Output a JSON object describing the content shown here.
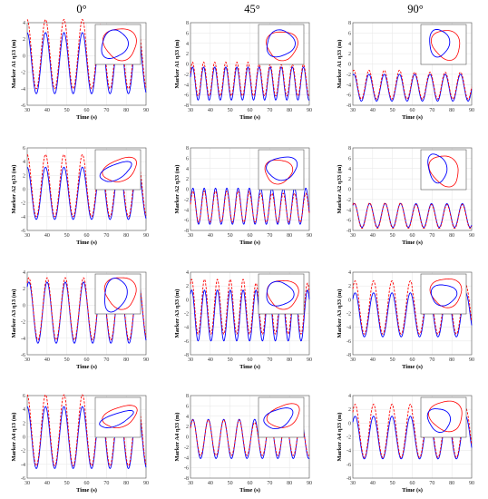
{
  "columns": [
    "0°",
    "45°",
    "90°"
  ],
  "chart_data": [
    {
      "type": "line",
      "row": 1,
      "col": 1,
      "ylabel": "Marker A1 η13 (m)",
      "xlabel": "Time (s)",
      "xlim": [
        30,
        90
      ],
      "ylim": [
        -6,
        4
      ],
      "yticks": [
        -6,
        -4,
        -2,
        0,
        2,
        4
      ],
      "xticks": [
        30,
        40,
        50,
        60,
        70,
        80,
        90
      ],
      "grid": true,
      "period": 9.3,
      "phase": 1.6,
      "series": [
        {
          "color": "#0000ff",
          "style": "solid",
          "max": 2.8,
          "min": -4.6
        },
        {
          "color": "#ff0000",
          "style": "dashed",
          "max": 3.8,
          "min": -4.0
        }
      ],
      "inset": {
        "blue": {
          "cx": 0.42,
          "cy": 0.5,
          "rx": 0.28,
          "ry": 0.36,
          "rot": 20
        },
        "red": {
          "cx": 0.55,
          "cy": 0.48,
          "rx": 0.36,
          "ry": 0.4,
          "rot": -15
        }
      }
    },
    {
      "type": "line",
      "row": 1,
      "col": 2,
      "ylabel": "Marker A1 η33 (m)",
      "xlabel": "Time (s)",
      "xlim": [
        30,
        90
      ],
      "ylim": [
        -8,
        8
      ],
      "yticks": [
        -8,
        -6,
        -4,
        -2,
        0,
        2,
        4,
        6,
        8
      ],
      "xticks": [
        30,
        40,
        50,
        60,
        70,
        80,
        90
      ],
      "grid": true,
      "period": 5.6,
      "phase": 0.4,
      "series": [
        {
          "color": "#0000ff",
          "style": "solid",
          "max": -0.6,
          "min": -7.0
        },
        {
          "color": "#ff0000",
          "style": "dashed",
          "max": -0.1,
          "min": -6.2
        }
      ],
      "inset": {
        "blue": {
          "cx": 0.48,
          "cy": 0.48,
          "rx": 0.3,
          "ry": 0.34,
          "rot": 25
        },
        "red": {
          "cx": 0.52,
          "cy": 0.52,
          "rx": 0.34,
          "ry": 0.36,
          "rot": -10
        }
      }
    },
    {
      "type": "line",
      "row": 1,
      "col": 3,
      "ylabel": "Marker A1 η33 (m)",
      "xlabel": "Time (s)",
      "xlim": [
        30,
        90
      ],
      "ylim": [
        -8,
        8
      ],
      "yticks": [
        -8,
        -6,
        -4,
        -2,
        0,
        2,
        4,
        6,
        8
      ],
      "xticks": [
        30,
        40,
        50,
        60,
        70,
        80,
        90
      ],
      "grid": true,
      "period": 7.7,
      "phase": 1.2,
      "series": [
        {
          "color": "#0000ff",
          "style": "solid",
          "max": -2.0,
          "min": -7.2
        },
        {
          "color": "#ff0000",
          "style": "dashed",
          "max": -1.6,
          "min": -6.8
        }
      ],
      "inset": {
        "blue": {
          "cx": 0.4,
          "cy": 0.46,
          "rx": 0.22,
          "ry": 0.34,
          "rot": 0
        },
        "red": {
          "cx": 0.56,
          "cy": 0.5,
          "rx": 0.3,
          "ry": 0.38,
          "rot": -20
        }
      }
    },
    {
      "type": "line",
      "row": 2,
      "col": 1,
      "ylabel": "Marker A2 η13 (m)",
      "xlabel": "Time (s)",
      "xlim": [
        30,
        90
      ],
      "ylim": [
        -6,
        6
      ],
      "yticks": [
        -6,
        -4,
        -2,
        0,
        2,
        4,
        6
      ],
      "xticks": [
        30,
        40,
        50,
        60,
        70,
        80,
        90
      ],
      "grid": true,
      "period": 9.3,
      "phase": 1.6,
      "series": [
        {
          "color": "#0000ff",
          "style": "solid",
          "max": 3.2,
          "min": -4.4
        },
        {
          "color": "#ff0000",
          "style": "dashed",
          "max": 4.4,
          "min": -4.0
        }
      ],
      "inset": {
        "blue": {
          "cx": 0.45,
          "cy": 0.55,
          "rx": 0.38,
          "ry": 0.18,
          "rot": -30
        },
        "red": {
          "cx": 0.55,
          "cy": 0.5,
          "rx": 0.4,
          "ry": 0.26,
          "rot": -30
        }
      }
    },
    {
      "type": "line",
      "row": 2,
      "col": 2,
      "ylabel": "Marker A2 η33 (m)",
      "xlabel": "Time (s)",
      "xlim": [
        30,
        90
      ],
      "ylim": [
        -8,
        8
      ],
      "yticks": [
        -8,
        -6,
        -4,
        -2,
        0,
        2,
        4,
        6,
        8
      ],
      "xticks": [
        30,
        40,
        50,
        60,
        70,
        80,
        90
      ],
      "grid": true,
      "period": 5.7,
      "phase": 0.2,
      "series": [
        {
          "color": "#0000ff",
          "style": "solid",
          "max": 0.2,
          "min": -6.8
        },
        {
          "color": "#ff0000",
          "style": "dashed",
          "max": -0.8,
          "min": -6.4
        }
      ],
      "inset": {
        "blue": {
          "cx": 0.52,
          "cy": 0.46,
          "rx": 0.34,
          "ry": 0.28,
          "rot": -20
        },
        "red": {
          "cx": 0.44,
          "cy": 0.54,
          "rx": 0.3,
          "ry": 0.3,
          "rot": -10
        }
      }
    },
    {
      "type": "line",
      "row": 2,
      "col": 3,
      "ylabel": "Marker A2 η33 (m)",
      "xlabel": "Time (s)",
      "xlim": [
        30,
        90
      ],
      "ylim": [
        -8,
        8
      ],
      "yticks": [
        -8,
        -6,
        -4,
        -2,
        0,
        2,
        4,
        6,
        8
      ],
      "xticks": [
        30,
        40,
        50,
        60,
        70,
        80,
        90
      ],
      "grid": true,
      "period": 7.8,
      "phase": 1.0,
      "series": [
        {
          "color": "#0000ff",
          "style": "solid",
          "max": -2.8,
          "min": -7.4
        },
        {
          "color": "#ff0000",
          "style": "dashed",
          "max": -3.0,
          "min": -7.6
        }
      ],
      "inset": {
        "blue": {
          "cx": 0.36,
          "cy": 0.46,
          "rx": 0.2,
          "ry": 0.36,
          "rot": -10
        },
        "red": {
          "cx": 0.52,
          "cy": 0.52,
          "rx": 0.3,
          "ry": 0.4,
          "rot": -25
        }
      }
    },
    {
      "type": "line",
      "row": 3,
      "col": 1,
      "ylabel": "Marker A3 η13 (m)",
      "xlabel": "Time (s)",
      "xlim": [
        30,
        90
      ],
      "ylim": [
        -6,
        4
      ],
      "yticks": [
        -6,
        -4,
        -2,
        0,
        2,
        4
      ],
      "xticks": [
        30,
        40,
        50,
        60,
        70,
        80,
        90
      ],
      "grid": true,
      "period": 9.2,
      "phase": 1.0,
      "series": [
        {
          "color": "#0000ff",
          "style": "solid",
          "max": 2.8,
          "min": -4.6
        },
        {
          "color": "#ff0000",
          "style": "dashed",
          "max": 2.8,
          "min": -4.2
        }
      ],
      "inset": {
        "blue": {
          "cx": 0.44,
          "cy": 0.52,
          "rx": 0.24,
          "ry": 0.42,
          "rot": 10
        },
        "red": {
          "cx": 0.56,
          "cy": 0.46,
          "rx": 0.34,
          "ry": 0.4,
          "rot": -10
        }
      }
    },
    {
      "type": "line",
      "row": 3,
      "col": 2,
      "ylabel": "Marker A3 η33 (m)",
      "xlabel": "Time (s)",
      "xlim": [
        30,
        90
      ],
      "ylim": [
        -8,
        4
      ],
      "yticks": [
        -8,
        -6,
        -4,
        -2,
        0,
        2,
        4
      ],
      "xticks": [
        30,
        40,
        50,
        60,
        70,
        80,
        90
      ],
      "grid": true,
      "period": 6.5,
      "phase": 1.0,
      "series": [
        {
          "color": "#0000ff",
          "style": "solid",
          "max": 1.4,
          "min": -6.0
        },
        {
          "color": "#ff0000",
          "style": "dashed",
          "max": 2.4,
          "min": -5.0
        }
      ],
      "inset": {
        "blue": {
          "cx": 0.46,
          "cy": 0.5,
          "rx": 0.3,
          "ry": 0.3,
          "rot": 20
        },
        "red": {
          "cx": 0.54,
          "cy": 0.5,
          "rx": 0.34,
          "ry": 0.36,
          "rot": -10
        }
      }
    },
    {
      "type": "line",
      "row": 3,
      "col": 3,
      "ylabel": "Marker A3 η33 (m)",
      "xlabel": "Time (s)",
      "xlim": [
        30,
        90
      ],
      "ylim": [
        -8,
        4
      ],
      "yticks": [
        -8,
        -6,
        -4,
        -2,
        0,
        2,
        4
      ],
      "xticks": [
        30,
        40,
        50,
        60,
        70,
        80,
        90
      ],
      "grid": true,
      "period": 9.3,
      "phase": 0.8,
      "series": [
        {
          "color": "#0000ff",
          "style": "solid",
          "max": 1.0,
          "min": -5.4
        },
        {
          "color": "#ff0000",
          "style": "dashed",
          "max": 2.2,
          "min": -5.0
        }
      ],
      "inset": {
        "blue": {
          "cx": 0.5,
          "cy": 0.52,
          "rx": 0.28,
          "ry": 0.26,
          "rot": 0
        },
        "red": {
          "cx": 0.56,
          "cy": 0.46,
          "rx": 0.34,
          "ry": 0.36,
          "rot": -15
        }
      }
    },
    {
      "type": "line",
      "row": 4,
      "col": 1,
      "ylabel": "Marker A4 η13 (m)",
      "xlabel": "Time (s)",
      "xlim": [
        30,
        90
      ],
      "ylim": [
        -6,
        6
      ],
      "yticks": [
        -6,
        -4,
        -2,
        0,
        2,
        4,
        6
      ],
      "xticks": [
        30,
        40,
        50,
        60,
        70,
        80,
        90
      ],
      "grid": true,
      "period": 9.3,
      "phase": 1.6,
      "series": [
        {
          "color": "#0000ff",
          "style": "solid",
          "max": 4.4,
          "min": -4.6
        },
        {
          "color": "#ff0000",
          "style": "dashed",
          "max": 5.4,
          "min": -4.2
        }
      ],
      "inset": {
        "blue": {
          "cx": 0.46,
          "cy": 0.55,
          "rx": 0.4,
          "ry": 0.14,
          "rot": -25
        },
        "red": {
          "cx": 0.55,
          "cy": 0.48,
          "rx": 0.4,
          "ry": 0.24,
          "rot": -25
        }
      }
    },
    {
      "type": "line",
      "row": 4,
      "col": 2,
      "ylabel": "Marker A4 η33 (m)",
      "xlabel": "Time (s)",
      "xlim": [
        30,
        90
      ],
      "ylim": [
        -8,
        8
      ],
      "yticks": [
        -8,
        -6,
        -4,
        -2,
        0,
        2,
        4,
        6,
        8
      ],
      "xticks": [
        30,
        40,
        50,
        60,
        70,
        80,
        90
      ],
      "grid": true,
      "period": 7.8,
      "phase": 0.6,
      "series": [
        {
          "color": "#0000ff",
          "style": "solid",
          "max": 3.4,
          "min": -4.2
        },
        {
          "color": "#ff0000",
          "style": "dashed",
          "max": 2.8,
          "min": -3.6
        }
      ],
      "inset": {
        "blue": {
          "cx": 0.44,
          "cy": 0.52,
          "rx": 0.34,
          "ry": 0.22,
          "rot": -30
        },
        "red": {
          "cx": 0.56,
          "cy": 0.46,
          "rx": 0.38,
          "ry": 0.26,
          "rot": -30
        }
      }
    },
    {
      "type": "line",
      "row": 4,
      "col": 3,
      "ylabel": "Marker A4 η33 (m)",
      "xlabel": "Time (s)",
      "xlim": [
        30,
        90
      ],
      "ylim": [
        -8,
        4
      ],
      "yticks": [
        -8,
        -6,
        -4,
        -2,
        0,
        2,
        4
      ],
      "xticks": [
        30,
        40,
        50,
        60,
        70,
        80,
        90
      ],
      "grid": true,
      "period": 9.3,
      "phase": 0.8,
      "series": [
        {
          "color": "#0000ff",
          "style": "solid",
          "max": 1.0,
          "min": -5.2
        },
        {
          "color": "#ff0000",
          "style": "dashed",
          "max": 2.2,
          "min": -5.0
        }
      ],
      "inset": {
        "blue": {
          "cx": 0.4,
          "cy": 0.56,
          "rx": 0.24,
          "ry": 0.3,
          "rot": -20
        },
        "red": {
          "cx": 0.56,
          "cy": 0.46,
          "rx": 0.36,
          "ry": 0.38,
          "rot": -25
        }
      }
    }
  ]
}
